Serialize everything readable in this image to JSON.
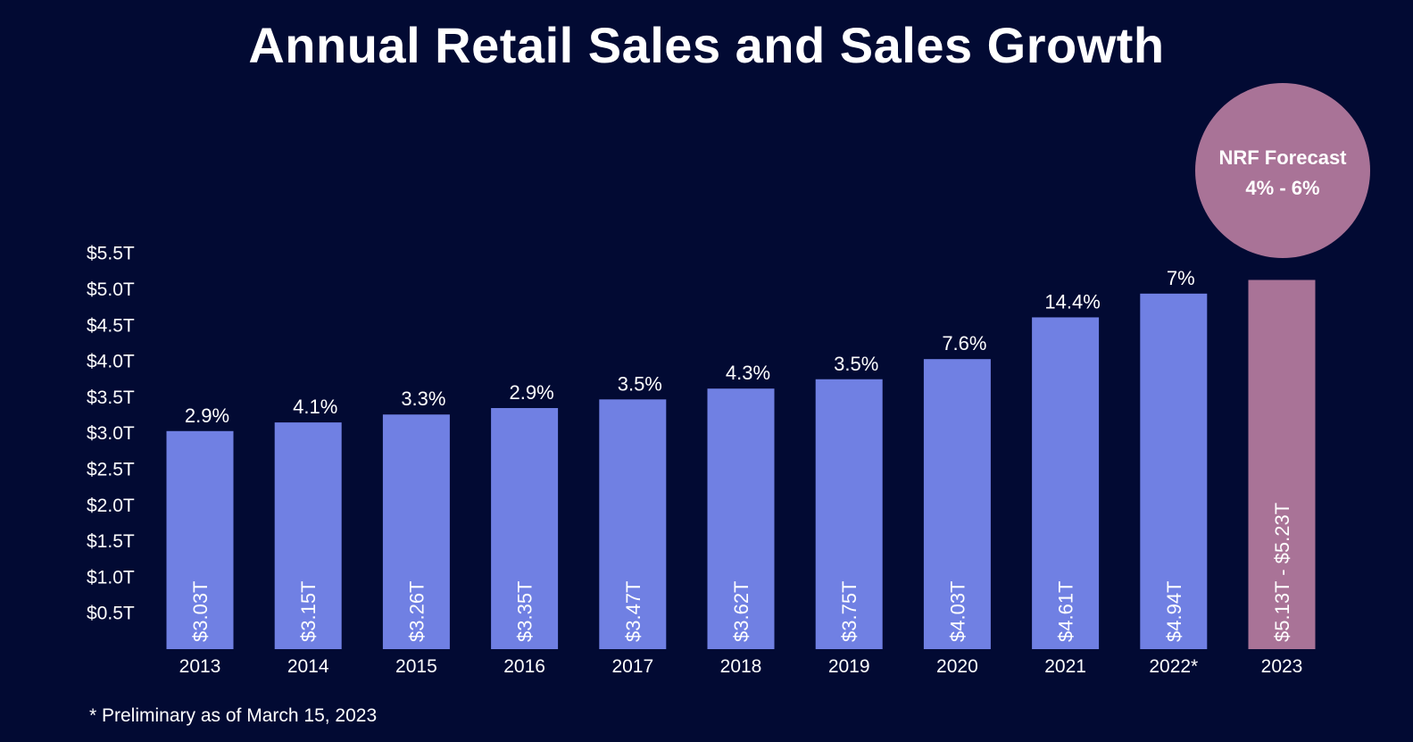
{
  "colors": {
    "background": "#020a33",
    "bar": "#7080e3",
    "forecast": "#a97397",
    "text": "#ffffff"
  },
  "forecast_badge": {
    "line1": "NRF Forecast",
    "line2": "4% - 6%"
  },
  "footnote": "* Preliminary as of March 15, 2023",
  "chart_data": {
    "type": "bar",
    "title": "Annual Retail Sales and Sales Growth",
    "categories": [
      "2013",
      "2014",
      "2015",
      "2016",
      "2017",
      "2018",
      "2019",
      "2020",
      "2021",
      "2022*",
      "2023"
    ],
    "values": [
      3.03,
      3.15,
      3.26,
      3.35,
      3.47,
      3.62,
      3.75,
      4.03,
      4.61,
      4.94,
      5.13
    ],
    "forecast_range": [
      5.13,
      5.23
    ],
    "value_labels": [
      "$3.03T",
      "$3.15T",
      "$3.26T",
      "$3.35T",
      "$3.47T",
      "$3.62T",
      "$3.75T",
      "$4.03T",
      "$4.61T",
      "$4.94T",
      "$5.13T - $5.23T"
    ],
    "growth_labels": [
      "2.9%",
      "4.1%",
      "3.3%",
      "2.9%",
      "3.5%",
      "4.3%",
      "3.5%",
      "7.6%",
      "14.4%",
      "7%",
      ""
    ],
    "forecast_index": 10,
    "y_ticks": [
      "$0.5T",
      "$1.0T",
      "$1.5T",
      "$2.0T",
      "$2.5T",
      "$3.0T",
      "$3.5T",
      "$4.0T",
      "$4.5T",
      "$5.0T",
      "$5.5T"
    ],
    "y_tick_values": [
      0.5,
      1.0,
      1.5,
      2.0,
      2.5,
      3.0,
      3.5,
      4.0,
      4.5,
      5.0,
      5.5
    ],
    "ylim": [
      0,
      5.5
    ],
    "grid": false,
    "xlabel": "",
    "ylabel": ""
  }
}
